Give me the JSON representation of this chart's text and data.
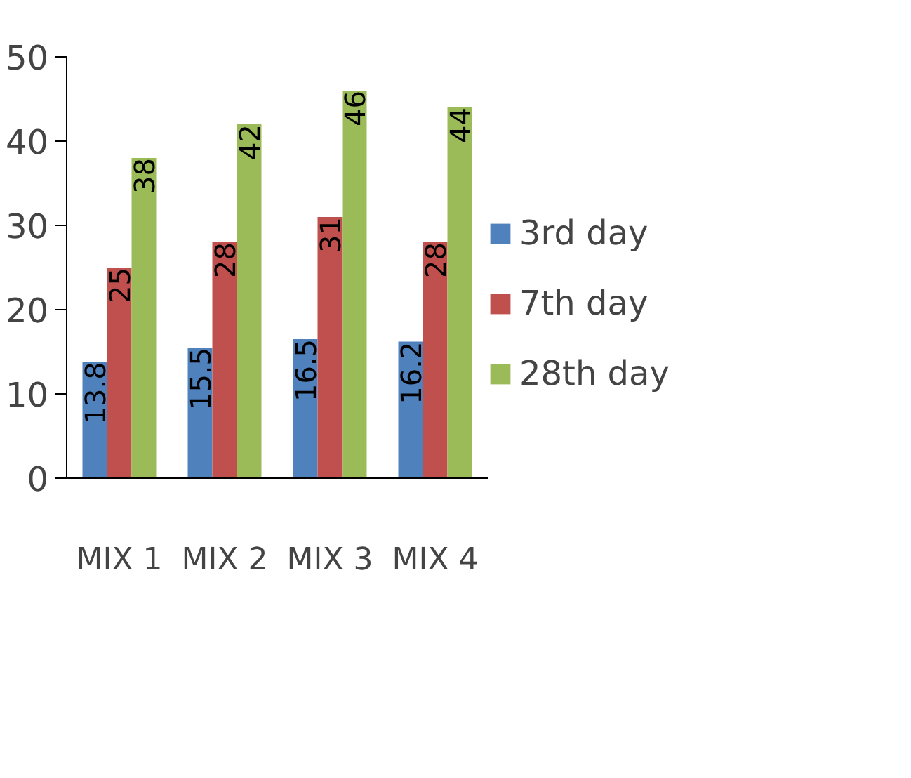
{
  "chart_data": {
    "type": "bar",
    "categories": [
      "MIX 1",
      "MIX 2",
      "MIX 3",
      "MIX 4"
    ],
    "series": [
      {
        "name": "3rd day",
        "color": "#4f81bd",
        "values": [
          13.8,
          15.5,
          16.5,
          16.2
        ]
      },
      {
        "name": "7th day",
        "color": "#c0504d",
        "values": [
          25,
          28,
          31,
          28
        ]
      },
      {
        "name": "28th day",
        "color": "#9bbb59",
        "values": [
          38,
          42,
          46,
          44
        ]
      }
    ],
    "ylim": [
      0,
      50
    ],
    "yticks": [
      0,
      10,
      20,
      30,
      40,
      50
    ],
    "grid": false,
    "legend": "right",
    "data_labels": true
  }
}
